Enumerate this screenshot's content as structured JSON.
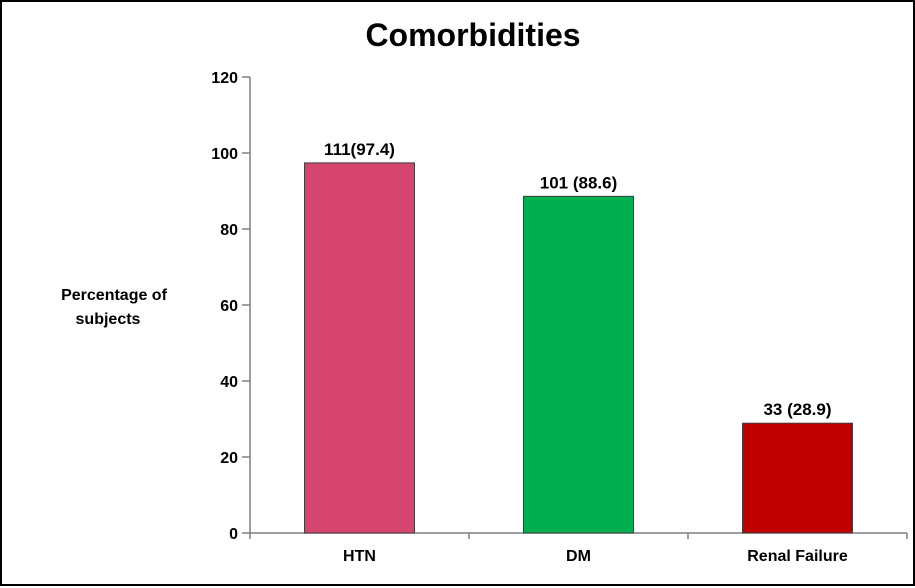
{
  "chart_data": {
    "type": "bar",
    "title": "Comorbidities",
    "ylabel": "Percentage of subjects",
    "ylabel_lines": [
      "Percentage of",
      "subjects"
    ],
    "xlabel": "",
    "categories": [
      "HTN",
      "DM",
      "Renal Failure"
    ],
    "values": [
      97.4,
      88.6,
      28.9
    ],
    "data_labels": [
      "111(97.4)",
      "101 (88.6)",
      "33 (28.9)"
    ],
    "colors": [
      "#d6456f",
      "#00b050",
      "#c00000"
    ],
    "ylim": [
      0,
      120
    ],
    "yticks": [
      0,
      20,
      40,
      60,
      80,
      100,
      120
    ],
    "grid": false,
    "legend": "none"
  }
}
